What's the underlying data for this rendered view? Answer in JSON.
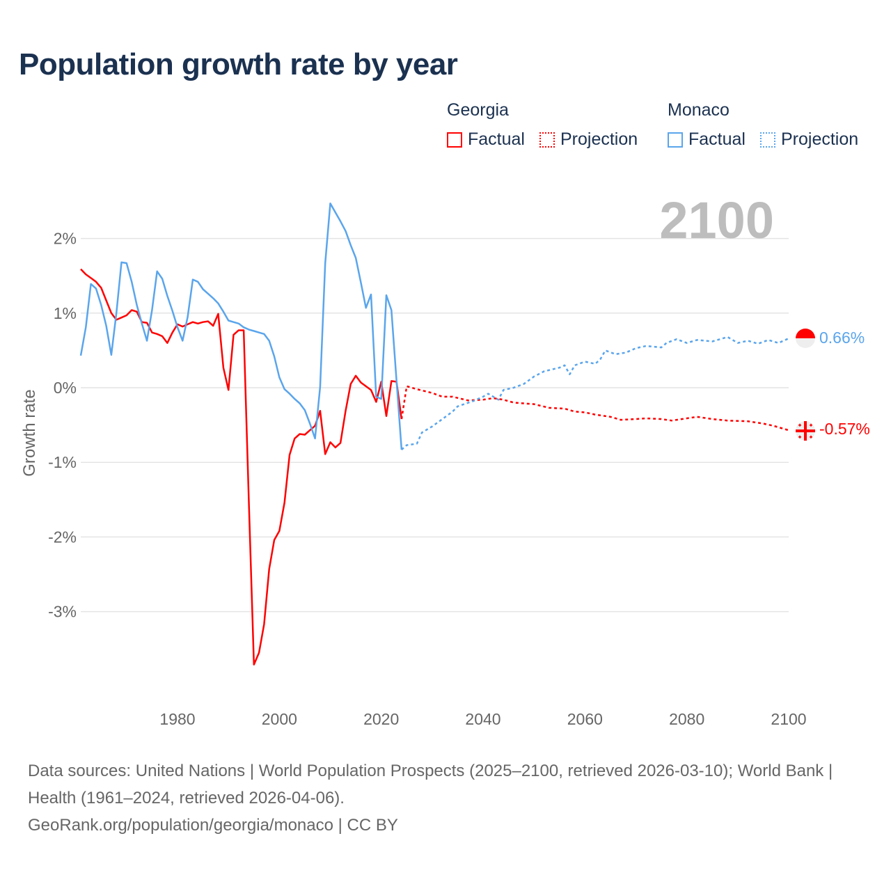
{
  "title": "Population growth rate by year",
  "legend": {
    "groups": [
      {
        "name": "Georgia",
        "color": "#ff0000",
        "factual": "Factual",
        "projection": "Projection"
      },
      {
        "name": "Monaco",
        "color": "#5aa5ec",
        "factual": "Factual",
        "projection": "Projection"
      }
    ]
  },
  "year_display": "2100",
  "end_labels": {
    "monaco": "0.66%",
    "georgia": "-0.57%"
  },
  "footer": {
    "sources": "Data sources: United Nations | World Population Prospects (2025–2100, retrieved 2026-03-10); World Bank | Health (1961–2024, retrieved 2026-04-06).",
    "credit": "GeoRank.org/population/georgia/monaco | CC BY"
  },
  "chart_data": {
    "type": "line",
    "title": "Population growth rate by year",
    "xlabel": "",
    "ylabel": "Growth rate",
    "xlim": [
      1961,
      2100
    ],
    "ylim": [
      -4,
      2.5
    ],
    "x_ticks": [
      1980,
      2000,
      2020,
      2040,
      2060,
      2080,
      2100
    ],
    "x_tick_labels": [
      "1980",
      "2000",
      "2020",
      "2040",
      "2060",
      "2080",
      "2100"
    ],
    "y_ticks": [
      2,
      1,
      0,
      -1,
      -2,
      -3
    ],
    "y_tick_labels": [
      "2%",
      "1%",
      "0%",
      "-1%",
      "-2%",
      "-3%"
    ],
    "grid": true,
    "legend_position": "top-right",
    "series": [
      {
        "name": "Georgia Factual",
        "color": "#ff0000",
        "style": "solid",
        "start_year": 1961,
        "values": [
          1.59,
          1.52,
          1.47,
          1.42,
          1.34,
          1.17,
          1.0,
          0.91,
          0.94,
          0.97,
          1.04,
          1.02,
          0.88,
          0.87,
          0.74,
          0.72,
          0.69,
          0.6,
          0.74,
          0.85,
          0.82,
          0.85,
          0.88,
          0.86,
          0.88,
          0.89,
          0.83,
          0.99,
          0.27,
          -0.03,
          0.71,
          0.77,
          0.77,
          -1.5,
          -3.71,
          -3.55,
          -3.17,
          -2.43,
          -2.04,
          -1.92,
          -1.54,
          -0.9,
          -0.68,
          -0.62,
          -0.63,
          -0.57,
          -0.51,
          -0.31,
          -0.89,
          -0.73,
          -0.8,
          -0.74,
          -0.31,
          0.05,
          0.16,
          0.07,
          0.02,
          -0.03,
          -0.19,
          0.08,
          -0.38,
          0.09,
          0.08,
          -0.42
        ]
      },
      {
        "name": "Monaco Factual",
        "color": "#5aa5ec",
        "style": "solid",
        "start_year": 1961,
        "values": [
          0.43,
          0.81,
          1.39,
          1.33,
          1.11,
          0.83,
          0.44,
          1.0,
          1.68,
          1.67,
          1.42,
          1.11,
          0.86,
          0.63,
          1.04,
          1.56,
          1.46,
          1.23,
          1.03,
          0.81,
          0.63,
          0.95,
          1.45,
          1.42,
          1.32,
          1.26,
          1.2,
          1.13,
          1.02,
          0.9,
          0.88,
          0.86,
          0.81,
          0.78,
          0.76,
          0.74,
          0.72,
          0.63,
          0.42,
          0.14,
          -0.02,
          -0.08,
          -0.15,
          -0.21,
          -0.3,
          -0.48,
          -0.68,
          0.01,
          1.67,
          2.47,
          2.35,
          2.23,
          2.1,
          1.91,
          1.74,
          1.41,
          1.07,
          1.25,
          -0.12,
          -0.15,
          1.24,
          1.04,
          0.1,
          -0.83
        ]
      },
      {
        "name": "Georgia Projection",
        "color": "#ff0000",
        "style": "dotted",
        "points": [
          [
            2024,
            -0.42
          ],
          [
            2025,
            0.02
          ],
          [
            2027,
            -0.02
          ],
          [
            2030,
            -0.07
          ],
          [
            2032,
            -0.12
          ],
          [
            2034,
            -0.12
          ],
          [
            2037,
            -0.17
          ],
          [
            2040,
            -0.16
          ],
          [
            2042,
            -0.14
          ],
          [
            2044,
            -0.16
          ],
          [
            2046,
            -0.2
          ],
          [
            2050,
            -0.22
          ],
          [
            2053,
            -0.27
          ],
          [
            2056,
            -0.28
          ],
          [
            2058,
            -0.32
          ],
          [
            2060,
            -0.33
          ],
          [
            2062,
            -0.36
          ],
          [
            2065,
            -0.39
          ],
          [
            2067,
            -0.43
          ],
          [
            2070,
            -0.42
          ],
          [
            2072,
            -0.41
          ],
          [
            2075,
            -0.42
          ],
          [
            2077,
            -0.44
          ],
          [
            2080,
            -0.41
          ],
          [
            2082,
            -0.39
          ],
          [
            2085,
            -0.42
          ],
          [
            2088,
            -0.44
          ],
          [
            2092,
            -0.45
          ],
          [
            2095,
            -0.48
          ],
          [
            2097,
            -0.51
          ],
          [
            2100,
            -0.57
          ]
        ]
      },
      {
        "name": "Monaco Projection",
        "color": "#5aa5ec",
        "style": "dotted",
        "points": [
          [
            2024,
            -0.83
          ],
          [
            2025,
            -0.77
          ],
          [
            2027,
            -0.75
          ],
          [
            2028,
            -0.6
          ],
          [
            2030,
            -0.52
          ],
          [
            2032,
            -0.42
          ],
          [
            2034,
            -0.32
          ],
          [
            2035,
            -0.25
          ],
          [
            2038,
            -0.18
          ],
          [
            2040,
            -0.12
          ],
          [
            2041,
            -0.08
          ],
          [
            2043,
            -0.16
          ],
          [
            2044,
            -0.03
          ],
          [
            2046,
            0.0
          ],
          [
            2048,
            0.05
          ],
          [
            2050,
            0.15
          ],
          [
            2052,
            0.22
          ],
          [
            2055,
            0.27
          ],
          [
            2056,
            0.3
          ],
          [
            2057,
            0.18
          ],
          [
            2058,
            0.3
          ],
          [
            2060,
            0.35
          ],
          [
            2062,
            0.32
          ],
          [
            2063,
            0.38
          ],
          [
            2064,
            0.5
          ],
          [
            2066,
            0.45
          ],
          [
            2068,
            0.47
          ],
          [
            2070,
            0.53
          ],
          [
            2072,
            0.56
          ],
          [
            2075,
            0.54
          ],
          [
            2076,
            0.6
          ],
          [
            2078,
            0.65
          ],
          [
            2080,
            0.6
          ],
          [
            2082,
            0.64
          ],
          [
            2085,
            0.62
          ],
          [
            2087,
            0.66
          ],
          [
            2088,
            0.68
          ],
          [
            2090,
            0.6
          ],
          [
            2092,
            0.63
          ],
          [
            2094,
            0.59
          ],
          [
            2096,
            0.64
          ],
          [
            2098,
            0.6
          ],
          [
            2100,
            0.66
          ]
        ]
      }
    ]
  }
}
